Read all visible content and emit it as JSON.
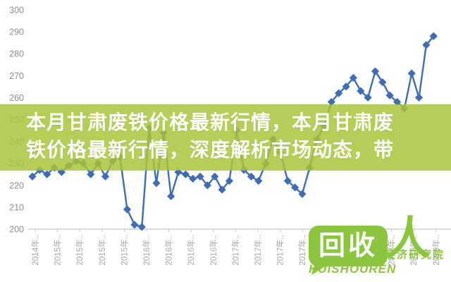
{
  "overlay": {
    "line1": "本月甘肃废铁价格最新行情，本月甘肃废",
    "line2": "铁价格最新行情，深度解析市场动态，带"
  },
  "logo": {
    "bubble_text": "回收",
    "person_glyph": "人",
    "institute": "经济研究院",
    "wordmark": "HUISHOUREN"
  },
  "chart_data": {
    "type": "line",
    "title": "",
    "xlabel": "",
    "ylabel": "",
    "ylim": [
      200,
      300
    ],
    "grid": false,
    "legend": "none",
    "marker": "diamond",
    "y_ticks": [
      300,
      290,
      280,
      270,
      260,
      250,
      240,
      230,
      220,
      210,
      200
    ],
    "x_tick_labels": [
      "2014年..",
      "2015年..",
      "2015年..",
      "2015年..",
      "2015年..",
      "2016年..",
      "2016年..",
      "2016年..",
      "2016年..",
      "2017年..",
      "2017年..",
      "2017年..",
      "2017年..",
      "2018年..",
      "2018年..",
      "2018年..",
      "2018年..",
      "2019年..",
      "2019年.."
    ],
    "series": [
      {
        "name": "",
        "values": [
          224,
          227,
          225,
          228,
          226,
          229,
          231,
          230,
          225,
          230,
          224,
          231,
          233,
          209,
          202,
          201,
          246,
          221,
          244,
          215,
          226,
          225,
          223,
          224,
          220,
          224,
          218,
          222,
          245,
          227,
          224,
          222,
          230,
          241,
          235,
          222,
          219,
          216,
          228,
          241,
          247,
          258,
          262,
          265,
          269,
          263,
          260,
          272,
          267,
          261,
          258,
          255,
          271,
          260,
          284,
          288
        ]
      }
    ],
    "colors": {
      "line": "#3e6db6",
      "band_overlay": "#a8c437",
      "logo_green": "#8cc63e",
      "axis": "#c8c8c8",
      "y_tick_text": "#8f8f8f",
      "x_tick_text": "#a9a9a9"
    }
  }
}
